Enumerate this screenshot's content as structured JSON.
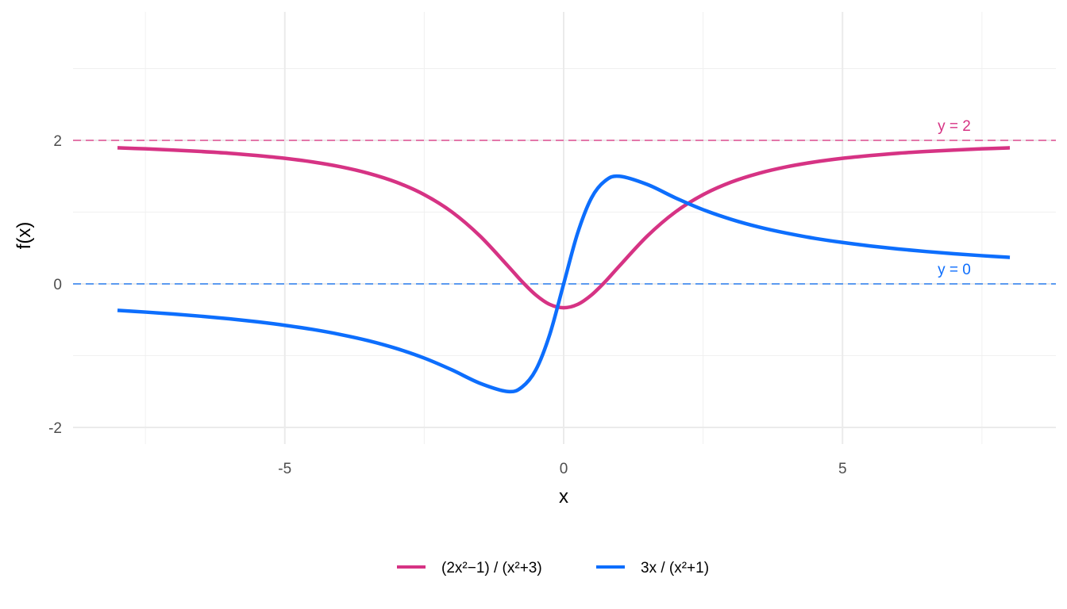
{
  "chart_data": {
    "type": "line",
    "xlabel": "x",
    "ylabel": "f(x)",
    "xlim": [
      -8.8,
      8.8
    ],
    "ylim": [
      -2.3,
      3.8
    ],
    "x_ticks": [
      -5,
      0,
      5
    ],
    "x_tick_labels": [
      "-5",
      "0",
      "5"
    ],
    "y_ticks": [
      -2,
      0,
      2
    ],
    "y_tick_labels": [
      "-2",
      "0",
      "2"
    ],
    "grid": true,
    "legend_position": "bottom",
    "x": [
      -8,
      -7.5,
      -7,
      -6.5,
      -6,
      -5.5,
      -5,
      -4.5,
      -4,
      -3.5,
      -3,
      -2.5,
      -2,
      -1.5,
      -1,
      -0.75,
      -0.5,
      -0.25,
      0,
      0.25,
      0.5,
      0.75,
      1,
      1.5,
      2,
      2.5,
      3,
      3.5,
      4,
      4.5,
      5,
      5.5,
      6,
      6.5,
      7,
      7.5,
      8
    ],
    "series": [
      {
        "name": "(2x²−1) / (x²+3)",
        "color": "#d63384",
        "values": [
          1.896,
          1.882,
          1.865,
          1.845,
          1.821,
          1.789,
          1.75,
          1.699,
          1.632,
          1.541,
          1.417,
          1.243,
          1,
          0.667,
          0.25,
          0.035,
          -0.154,
          -0.286,
          -0.333,
          -0.286,
          -0.154,
          0.035,
          0.25,
          0.667,
          1,
          1.243,
          1.417,
          1.541,
          1.632,
          1.699,
          1.75,
          1.789,
          1.821,
          1.845,
          1.865,
          1.882,
          1.896
        ]
      },
      {
        "name": "3x / (x²+1)",
        "color": "#0d6efd",
        "values": [
          -0.369,
          -0.393,
          -0.42,
          -0.451,
          -0.486,
          -0.528,
          -0.577,
          -0.635,
          -0.706,
          -0.792,
          -0.9,
          -1.034,
          -1.2,
          -1.385,
          -1.5,
          -1.44,
          -1.2,
          -0.706,
          0,
          0.706,
          1.2,
          1.44,
          1.5,
          1.385,
          1.2,
          1.034,
          0.9,
          0.792,
          0.706,
          0.635,
          0.577,
          0.528,
          0.486,
          0.451,
          0.42,
          0.393,
          0.369
        ]
      }
    ],
    "reference_lines": [
      {
        "y": 2,
        "label": "y = 2",
        "color": "#e377aa"
      },
      {
        "y": 0,
        "label": "y = 0",
        "color": "#5b9af0"
      }
    ]
  }
}
